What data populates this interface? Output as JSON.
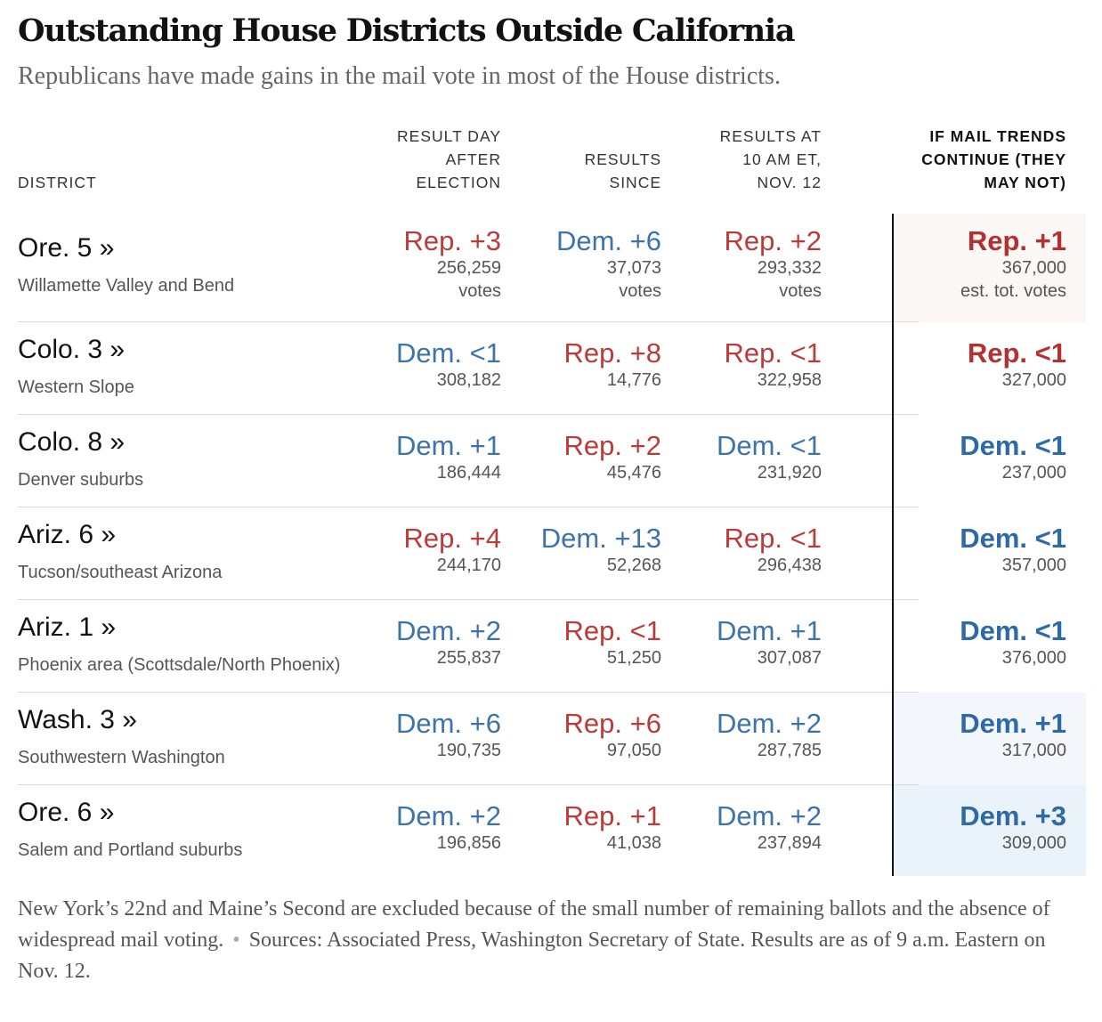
{
  "title": "Outstanding House Districts Outside California",
  "subtitle": "Republicans have made gains in the mail vote in most of the House districts.",
  "columns": {
    "district": "DISTRICT",
    "day_after": [
      "RESULT DAY",
      "AFTER",
      "ELECTION"
    ],
    "since": [
      "RESULTS",
      "SINCE"
    ],
    "at_10am": [
      "RESULTS AT",
      "10 AM ET,",
      "NOV. 12"
    ],
    "projection": [
      "IF MAIL TRENDS",
      "CONTINUE (THEY",
      "MAY NOT)"
    ]
  },
  "colors": {
    "dem": "#3d73ad",
    "rep": "#bd3a3a",
    "highlight_rep": "#fbf7f5",
    "highlight_dem": "#f3f7fb",
    "highlight_dem_strong": "#eaf2fa"
  },
  "rows": [
    {
      "name": "Ore. 5 »",
      "region": "Willamette Valley and Bend",
      "day_after": {
        "margin": "Rep. +3",
        "party": "rep",
        "votes": "256,259",
        "unit": "votes"
      },
      "since": {
        "margin": "Dem. +6",
        "party": "dem",
        "votes": "37,073",
        "unit": "votes"
      },
      "at_10am": {
        "margin": "Rep. +2",
        "party": "rep",
        "votes": "293,332",
        "unit": "votes"
      },
      "projection": {
        "margin": "Rep. +1",
        "party": "rep",
        "votes": "367,000",
        "unit": "est. tot. votes",
        "highlight": "highlight_rep"
      }
    },
    {
      "name": "Colo. 3 »",
      "region": "Western Slope",
      "day_after": {
        "margin": "Dem. <1",
        "party": "dem",
        "votes": "308,182"
      },
      "since": {
        "margin": "Rep. +8",
        "party": "rep",
        "votes": "14,776"
      },
      "at_10am": {
        "margin": "Rep. <1",
        "party": "rep",
        "votes": "322,958"
      },
      "projection": {
        "margin": "Rep. <1",
        "party": "rep",
        "votes": "327,000"
      }
    },
    {
      "name": "Colo. 8 »",
      "region": "Denver suburbs",
      "day_after": {
        "margin": "Dem. +1",
        "party": "dem",
        "votes": "186,444"
      },
      "since": {
        "margin": "Rep. +2",
        "party": "rep",
        "votes": "45,476"
      },
      "at_10am": {
        "margin": "Dem. <1",
        "party": "dem",
        "votes": "231,920"
      },
      "projection": {
        "margin": "Dem. <1",
        "party": "dem",
        "votes": "237,000"
      }
    },
    {
      "name": "Ariz. 6 »",
      "region": "Tucson/southeast Arizona",
      "day_after": {
        "margin": "Rep. +4",
        "party": "rep",
        "votes": "244,170"
      },
      "since": {
        "margin": "Dem. +13",
        "party": "dem",
        "votes": "52,268"
      },
      "at_10am": {
        "margin": "Rep. <1",
        "party": "rep",
        "votes": "296,438"
      },
      "projection": {
        "margin": "Dem. <1",
        "party": "dem",
        "votes": "357,000"
      }
    },
    {
      "name": "Ariz. 1 »",
      "region": "Phoenix area (Scottsdale/North Phoenix)",
      "day_after": {
        "margin": "Dem. +2",
        "party": "dem",
        "votes": "255,837"
      },
      "since": {
        "margin": "Rep. <1",
        "party": "rep",
        "votes": "51,250"
      },
      "at_10am": {
        "margin": "Dem. +1",
        "party": "dem",
        "votes": "307,087"
      },
      "projection": {
        "margin": "Dem. <1",
        "party": "dem",
        "votes": "376,000"
      }
    },
    {
      "name": "Wash. 3 »",
      "region": "Southwestern Washington",
      "day_after": {
        "margin": "Dem. +6",
        "party": "dem",
        "votes": "190,735"
      },
      "since": {
        "margin": "Rep. +6",
        "party": "rep",
        "votes": "97,050"
      },
      "at_10am": {
        "margin": "Dem. +2",
        "party": "dem",
        "votes": "287,785"
      },
      "projection": {
        "margin": "Dem. +1",
        "party": "dem",
        "votes": "317,000",
        "highlight": "highlight_dem"
      }
    },
    {
      "name": "Ore. 6 »",
      "region": "Salem and Portland suburbs",
      "day_after": {
        "margin": "Dem. +2",
        "party": "dem",
        "votes": "196,856"
      },
      "since": {
        "margin": "Rep. +1",
        "party": "rep",
        "votes": "41,038"
      },
      "at_10am": {
        "margin": "Dem. +2",
        "party": "dem",
        "votes": "237,894"
      },
      "projection": {
        "margin": "Dem. +3",
        "party": "dem",
        "votes": "309,000",
        "highlight": "highlight_dem_strong"
      }
    }
  ],
  "footnote": {
    "text": "New York’s 22nd and Maine’s Second are excluded because of the small number of remaining ballots and the absence of widespread mail voting.",
    "separator": "•",
    "sources": "Sources: Associated Press, Washington Secretary of State. Results are as of 9 a.m. Eastern on Nov. 12."
  }
}
